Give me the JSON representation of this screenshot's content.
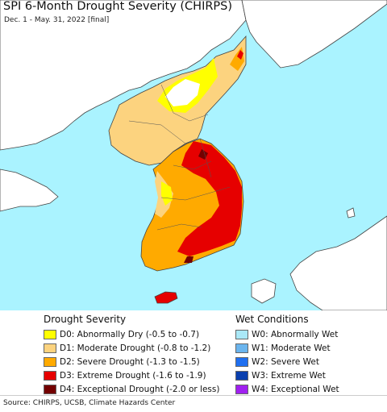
{
  "title": "SPI 6-Month Drought Severity (CHIRPS)",
  "subtitle": "Dec. 1 - May. 31, 2022 [final]",
  "legend_drought": {
    "heading": "Drought Severity",
    "items": [
      {
        "label": "D0: Abnormally Dry (-0.5 to -0.7)",
        "color": "#ffff00"
      },
      {
        "label": "D1: Moderate Drought (-0.8 to -1.2)",
        "color": "#fcd37f"
      },
      {
        "label": "D2: Severe Drought (-1.3 to -1.5)",
        "color": "#ffaa00"
      },
      {
        "label": "D3: Extreme Drought (-1.6 to -1.9)",
        "color": "#e60000"
      },
      {
        "label": "D4: Exceptional Drought (-2.0 or less)",
        "color": "#730000"
      }
    ]
  },
  "legend_wet": {
    "heading": "Wet Conditions",
    "items": [
      {
        "label": "W0: Abnormally Wet",
        "color": "#aae8f7"
      },
      {
        "label": "W1: Moderate Wet",
        "color": "#6bb5ee"
      },
      {
        "label": "W2: Severe Wet",
        "color": "#1f6ff0"
      },
      {
        "label": "W3: Extreme Wet",
        "color": "#0a3fae"
      },
      {
        "label": "W4: Exceptional Wet",
        "color": "#a020f0"
      }
    ]
  },
  "colors": {
    "sea": "#aaf3ff",
    "land_neighbor": "#ffffff",
    "border": "#444444"
  },
  "source": "Source: CHIRPS, UCSB, Climate Hazards Center"
}
